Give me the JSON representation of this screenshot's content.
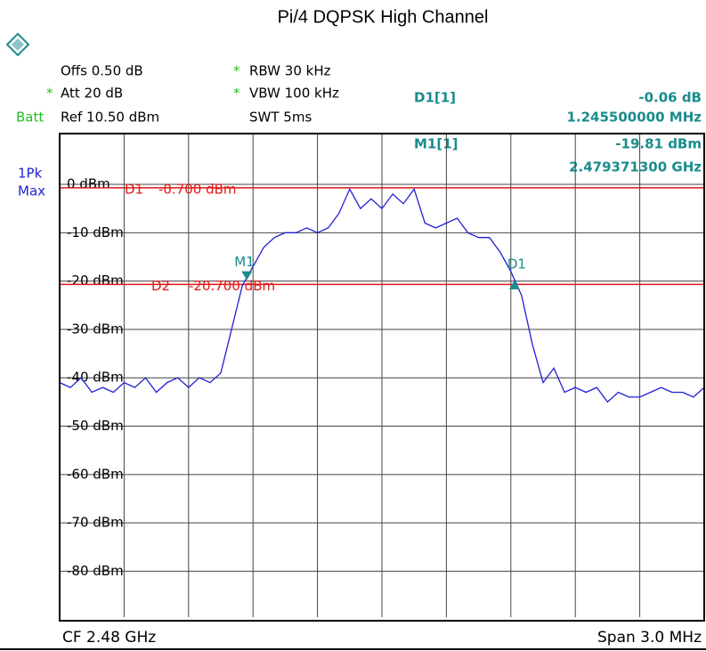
{
  "chart_data": {
    "type": "line",
    "title": "Pi/4 DQPSK High Channel",
    "settings": {
      "offset": "Offs 0.50 dB",
      "att_star": "*",
      "att": "Att 20 dB",
      "batt": "Batt",
      "ref": "Ref 10.50 dBm",
      "rbw_star": "*",
      "rbw": "RBW 30 kHz",
      "vbw_star": "*",
      "vbw": "VBW 100 kHz",
      "swt": "SWT 5ms",
      "detector": "1Pk",
      "trace_mode": "Max"
    },
    "center": "CF 2.48 GHz",
    "span": "Span 3.0 MHz",
    "color": "#1f1fd6",
    "xlim": [
      2478.5,
      2481.5
    ],
    "ylim": [
      -89.5,
      10.5
    ],
    "yticks": [
      {
        "value": 0,
        "label": "0 dBm"
      },
      {
        "value": -10,
        "label": "-10 dBm"
      },
      {
        "value": -20,
        "label": "-20 dBm"
      },
      {
        "value": -30,
        "label": "-30 dBm"
      },
      {
        "value": -40,
        "label": "-40 dBm"
      },
      {
        "value": -50,
        "label": "-50 dBm"
      },
      {
        "value": -60,
        "label": "-60 dBm"
      },
      {
        "value": -70,
        "label": "-70 dBm"
      },
      {
        "value": -80,
        "label": "-80 dBm"
      }
    ],
    "grid": true,
    "x": [
      2478.5,
      2478.55,
      2478.6,
      2478.65,
      2478.7,
      2478.75,
      2478.8,
      2478.85,
      2478.9,
      2478.95,
      2479.0,
      2479.05,
      2479.1,
      2479.15,
      2479.2,
      2479.25,
      2479.3,
      2479.35,
      2479.4,
      2479.45,
      2479.5,
      2479.55,
      2479.6,
      2479.65,
      2479.7,
      2479.75,
      2479.8,
      2479.85,
      2479.9,
      2479.95,
      2480.0,
      2480.05,
      2480.1,
      2480.15,
      2480.2,
      2480.25,
      2480.3,
      2480.35,
      2480.4,
      2480.45,
      2480.5,
      2480.55,
      2480.6,
      2480.65,
      2480.7,
      2480.75,
      2480.8,
      2480.85,
      2480.9,
      2480.95,
      2481.0,
      2481.05,
      2481.1,
      2481.15,
      2481.2,
      2481.25,
      2481.3,
      2481.35,
      2481.4,
      2481.45,
      2481.5
    ],
    "values": [
      -41,
      -42,
      -40,
      -43,
      -42,
      -43,
      -41,
      -42,
      -40,
      -43,
      -41,
      -40,
      -42,
      -40,
      -41,
      -39,
      -30,
      -21,
      -17,
      -13,
      -11,
      -10,
      -10,
      -9,
      -10,
      -9,
      -6,
      -1,
      -5,
      -3,
      -5,
      -2,
      -4,
      -1,
      -8,
      -9,
      -8,
      -7,
      -10,
      -11,
      -11,
      -14,
      -18,
      -23,
      -33,
      -41,
      -38,
      -43,
      -42,
      -43,
      -42,
      -45,
      -43,
      -44,
      -44,
      -43,
      -42,
      -43,
      -43,
      -44,
      -42
    ],
    "display_lines": [
      {
        "name": "D1",
        "label": "-0.700 dBm",
        "value": -0.7
      },
      {
        "name": "D2",
        "label": "-20.700 dBm",
        "value": -20.7
      }
    ],
    "marker": {
      "name": "M1",
      "label": "M1[1]",
      "x": 2479.3713,
      "x_label": "2.479371300 GHz",
      "value": -19.81,
      "value_label": "-19.81 dBm"
    },
    "delta": {
      "name": "D1",
      "label": "D1[1]",
      "x": 1.2455,
      "x_label": "1.245500000 MHz",
      "value": -0.06,
      "value_label": "-0.06 dB"
    }
  }
}
